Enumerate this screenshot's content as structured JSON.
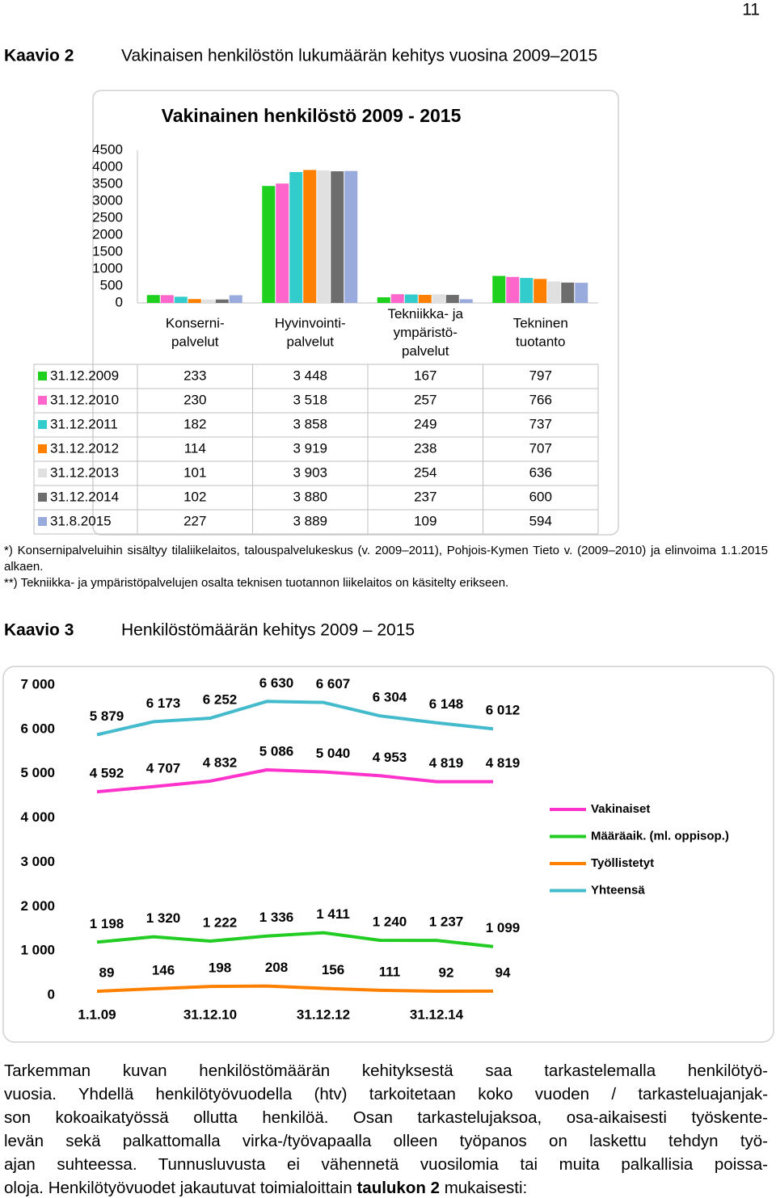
{
  "page_number": "11",
  "figure2": {
    "label": "Kaavio 2",
    "caption": "Vakinaisen henkilöstön lukumäärän kehitys vuosina 2009–2015"
  },
  "notes": [
    "*) Konsernipalveluihin sisältyy tilaliikelaitos, talouspalvelukeskus (v. 2009–2011), Pohjois-Kymen Tieto v. (2009–2010) ja elinvoima 1.1.2015 alkaen.",
    "**) Tekniikka- ja ympäristöpalvelujen osalta teknisen tuotannon liikelaitos on käsitelty erikseen."
  ],
  "figure3": {
    "label": "Kaavio 3",
    "caption": "Henkilöstömäärän kehitys 2009 – 2015"
  },
  "paragraph": {
    "lines": [
      "Tarkemman kuvan henkilöstömäärän kehityksestä saa tarkastelemalla henkilötyö-",
      "vuosia. Yhdellä henkilötyövuodella (htv) tarkoitetaan koko vuoden / tarkasteluajanjak-",
      "son kokoaikatyössä ollutta henkilöä. Osan tarkastelujaksoa, osa-aikaisesti työskente-",
      "levän sekä palkattomalla virka-/työvapaalla olleen työpanos on laskettu tehdyn työ-",
      "ajan suhteessa. Tunnusluvusta ei vähennetä vuosilomia tai muita palkallisia poissa-"
    ],
    "last_line": [
      "oloja. Henkilötyövuodet jakautuvat toimialoittain",
      "taulukon 2",
      "mukaisesti:"
    ]
  },
  "chart_data": [
    {
      "type": "bar",
      "title": "Vakinainen henkilöstö 2009 - 2015",
      "categories": [
        "Konserni-\npalvelut",
        "Hyvinvointi-\npalvelut",
        "Tekniikka- ja\nympäristö-\npalvelut",
        "Tekninen\ntuotanto"
      ],
      "series": [
        {
          "name": "31.12.2009",
          "color": "#1fd01f",
          "values": [
            233,
            3448,
            167,
            797
          ],
          "value_labels": [
            "233",
            "3 448",
            "167",
            "797"
          ]
        },
        {
          "name": "31.12.2010",
          "color": "#ff66cc",
          "values": [
            230,
            3518,
            257,
            766
          ],
          "value_labels": [
            "230",
            "3 518",
            "257",
            "766"
          ]
        },
        {
          "name": "31.12.2011",
          "color": "#33cccc",
          "values": [
            182,
            3858,
            249,
            737
          ],
          "value_labels": [
            "182",
            "3 858",
            "249",
            "737"
          ]
        },
        {
          "name": "31.12.2012",
          "color": "#ff7f00",
          "values": [
            114,
            3919,
            238,
            707
          ],
          "value_labels": [
            "114",
            "3 919",
            "238",
            "707"
          ]
        },
        {
          "name": "31.12.2013",
          "color": "#e0e0e0",
          "values": [
            101,
            3903,
            254,
            636
          ],
          "value_labels": [
            "101",
            "3 903",
            "254",
            "636"
          ]
        },
        {
          "name": "31.12.2014",
          "color": "#6d6d6d",
          "values": [
            102,
            3880,
            237,
            600
          ],
          "value_labels": [
            "102",
            "3 880",
            "237",
            "600"
          ]
        },
        {
          "name": "31.8.2015",
          "color": "#99aadd",
          "values": [
            227,
            3889,
            109,
            594
          ],
          "value_labels": [
            "227",
            "3 889",
            "109",
            "594"
          ]
        }
      ],
      "ylim": [
        0,
        4500
      ],
      "yticks": [
        0,
        500,
        1000,
        1500,
        2000,
        2500,
        3000,
        3500,
        4000,
        4500
      ],
      "grid": false,
      "data_table": true
    },
    {
      "type": "line",
      "categories": [
        "1.1.09",
        null,
        "31.12.10",
        null,
        "31.12.12",
        null,
        "31.12.14",
        null
      ],
      "series": [
        {
          "name": "Vakinaiset",
          "color": "#ff33cc",
          "values": [
            4592,
            4707,
            4832,
            5086,
            5040,
            4953,
            4819,
            4819
          ],
          "value_labels": [
            "4 592",
            "4 707",
            "4 832",
            "5 086",
            "5 040",
            "4 953",
            "4 819",
            "4 819"
          ]
        },
        {
          "name": "Määräaik. (ml. oppisop.)",
          "color": "#22cc22",
          "values": [
            1198,
            1320,
            1222,
            1336,
            1411,
            1240,
            1237,
            1099
          ],
          "value_labels": [
            "1 198",
            "1 320",
            "1 222",
            "1 336",
            "1 411",
            "1 240",
            "1 237",
            "1 099"
          ]
        },
        {
          "name": "Työllistetyt",
          "color": "#ff8000",
          "values": [
            89,
            146,
            198,
            208,
            156,
            111,
            92,
            94
          ]
        },
        {
          "name": "Yhteensä",
          "color": "#44bbcc",
          "values": [
            5879,
            6173,
            6252,
            6630,
            6607,
            6304,
            6148,
            6012
          ],
          "value_labels": [
            "5 879",
            "6 173",
            "6 252",
            "6 630",
            "6 607",
            "6 304",
            "6 148",
            "6 012"
          ]
        }
      ],
      "ylim": [
        0,
        7000
      ],
      "yticks": [
        0,
        {
          "value": 1000,
          "label": "1 000"
        },
        {
          "value": 2000,
          "label": "2 000"
        },
        {
          "value": 3000,
          "label": "3 000"
        },
        {
          "value": 4000,
          "label": "4 000"
        },
        {
          "value": 5000,
          "label": "5 000"
        },
        {
          "value": 6000,
          "label": "6 000"
        },
        {
          "value": 7000,
          "label": "7 000"
        }
      ],
      "grid": false,
      "legend": "right"
    }
  ]
}
